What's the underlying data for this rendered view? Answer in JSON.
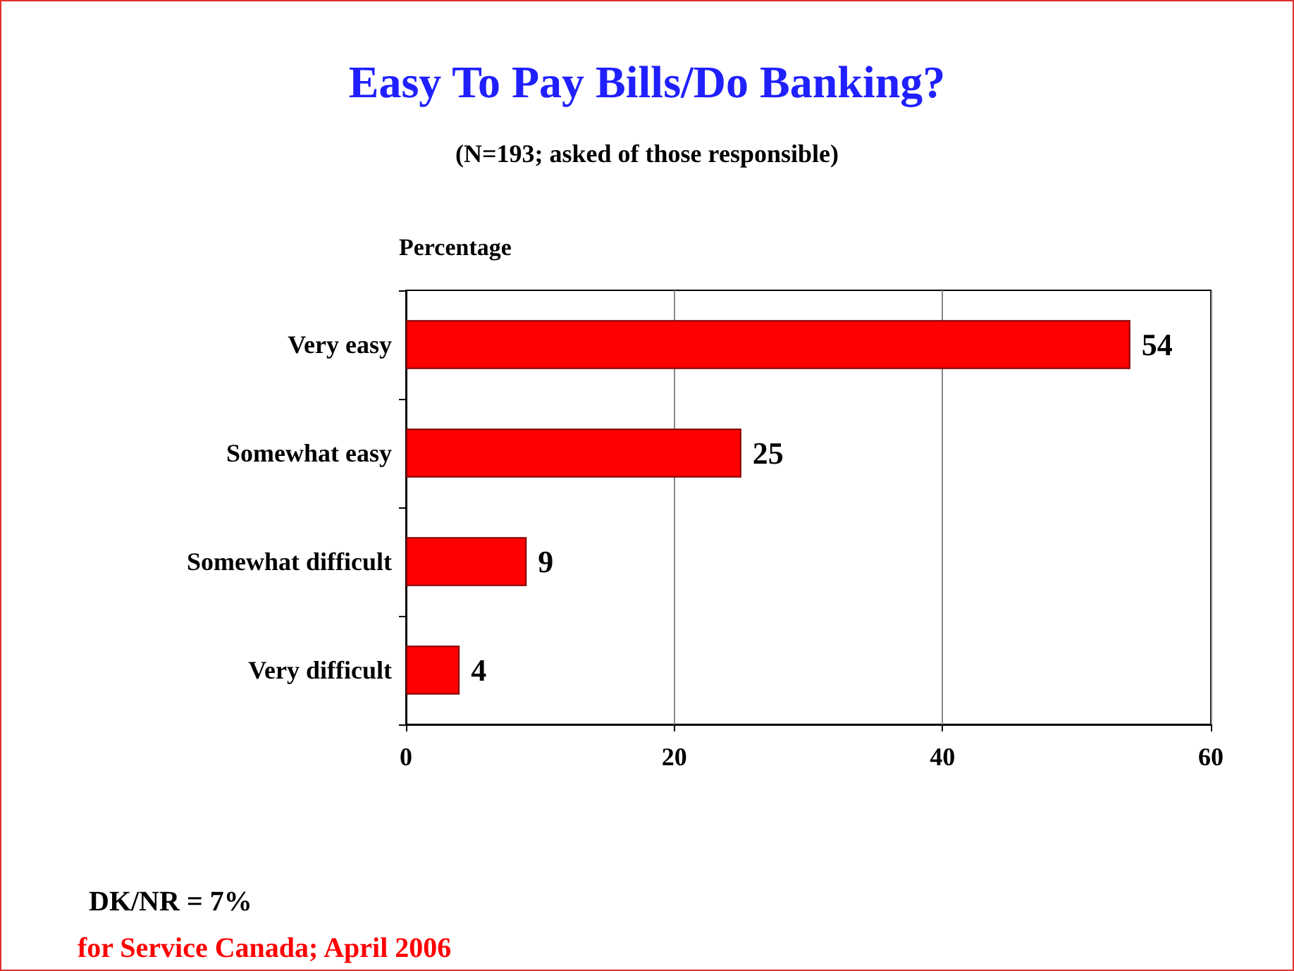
{
  "chart_data": {
    "type": "bar",
    "orientation": "horizontal",
    "title": "Easy To Pay Bills/Do Banking?",
    "subtitle": "(N=193; asked of those responsible)",
    "xlabel": "Percentage",
    "categories": [
      "Very easy",
      "Somewhat easy",
      "Somewhat difficult",
      "Very difficult"
    ],
    "values": [
      54,
      25,
      9,
      4
    ],
    "color": "#ff0000",
    "xlim": [
      0,
      60
    ],
    "xticks": [
      0,
      20,
      40,
      60
    ],
    "grid": "x",
    "data_labels": true,
    "annotations": [
      "DK/NR = 7%",
      "for Service Canada; April 2006"
    ]
  }
}
